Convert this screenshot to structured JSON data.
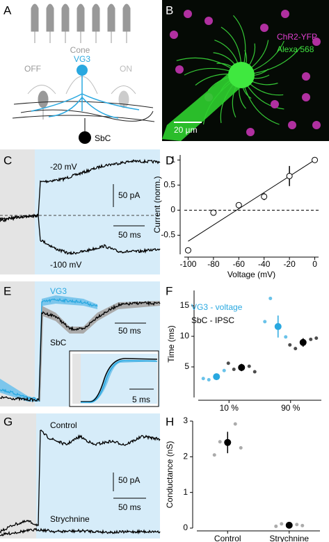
{
  "panel_labels": [
    "A",
    "B",
    "C",
    "D",
    "E",
    "F",
    "G",
    "H"
  ],
  "diagram": {
    "cone_label": "Cone",
    "off_label": "OFF",
    "vg3_label": "VG3",
    "on_label": "ON",
    "sbc_label": "SbC"
  },
  "image": {
    "label_1": "ChR2-YFP",
    "label_2": "Alexa 568",
    "scale_bar": "20 µm"
  },
  "traces_c": {
    "upper_label": "-20 mV",
    "lower_label": "-100 mV",
    "scale_y": "50 pA",
    "scale_x": "50 ms"
  },
  "traces_e": {
    "vg3_label": "VG3",
    "sbc_label": "SbC",
    "scale_x": "50 ms",
    "inset_scale_x": "5 ms"
  },
  "traces_g": {
    "control_label": "Control",
    "strychnine_label": "Strychnine",
    "scale_y": "50 pA",
    "scale_x": "50 ms"
  },
  "chart_data": [
    {
      "type": "scatter",
      "x_label": "Voltage (mV)",
      "y_label": "Current (norm.)",
      "x": [
        -100,
        -80,
        -60,
        -40,
        -20,
        0
      ],
      "values": [
        -0.8,
        -0.05,
        0.1,
        0.27,
        0.68,
        1
      ],
      "errors": [
        null,
        null,
        null,
        0.07,
        0.2,
        null
      ],
      "fit": {
        "x": [
          -100,
          0
        ],
        "values": [
          -0.62,
          1
        ]
      },
      "xlim": [
        -103,
        3
      ],
      "ylim": [
        -0.88,
        1.1
      ],
      "xticks": [
        -100,
        -80,
        -60,
        -40,
        -20,
        0
      ],
      "yticks": [
        -0.5,
        0,
        0.5,
        1
      ],
      "zero_line": true
    },
    {
      "type": "dot",
      "y_label": "Time (ms)",
      "categories": [
        "10 %",
        "90 %"
      ],
      "series": [
        {
          "name": "VG3 - voltage",
          "color": "#29a8e0",
          "values": [
            3.4,
            11.6
          ],
          "errors": [
            0.5,
            1.8
          ],
          "points": [
            [
              2.9,
              4.4,
              3.1
            ],
            [
              16.2,
              9.9,
              12.4
            ]
          ]
        },
        {
          "name": "SbC - IPSC",
          "color": "#000000",
          "values": [
            4.9,
            9.0
          ],
          "errors": [
            0.6,
            0.7
          ],
          "points": [
            [
              4.6,
              5.1,
              5.6,
              4.2
            ],
            [
              8.0,
              9.5,
              8.6,
              9.7
            ]
          ]
        }
      ],
      "ylim": [
        0,
        17.5
      ],
      "yticks": [
        5,
        10,
        15
      ]
    },
    {
      "type": "dot",
      "y_label": "Conductance (nS)",
      "categories": [
        "Control",
        "Strychnine"
      ],
      "series": [
        {
          "color": "#000000",
          "values": [
            2.4,
            0.08
          ],
          "errors": [
            0.3,
            0.02
          ],
          "points": [
            [
              2.42,
              2.92,
              2.05,
              2.25
            ],
            [
              0.12,
              0.1,
              0.05,
              0.07
            ]
          ]
        }
      ],
      "point_color": "#888888",
      "ylim": [
        0,
        3
      ],
      "yticks": [
        0,
        1,
        2,
        3
      ]
    }
  ]
}
